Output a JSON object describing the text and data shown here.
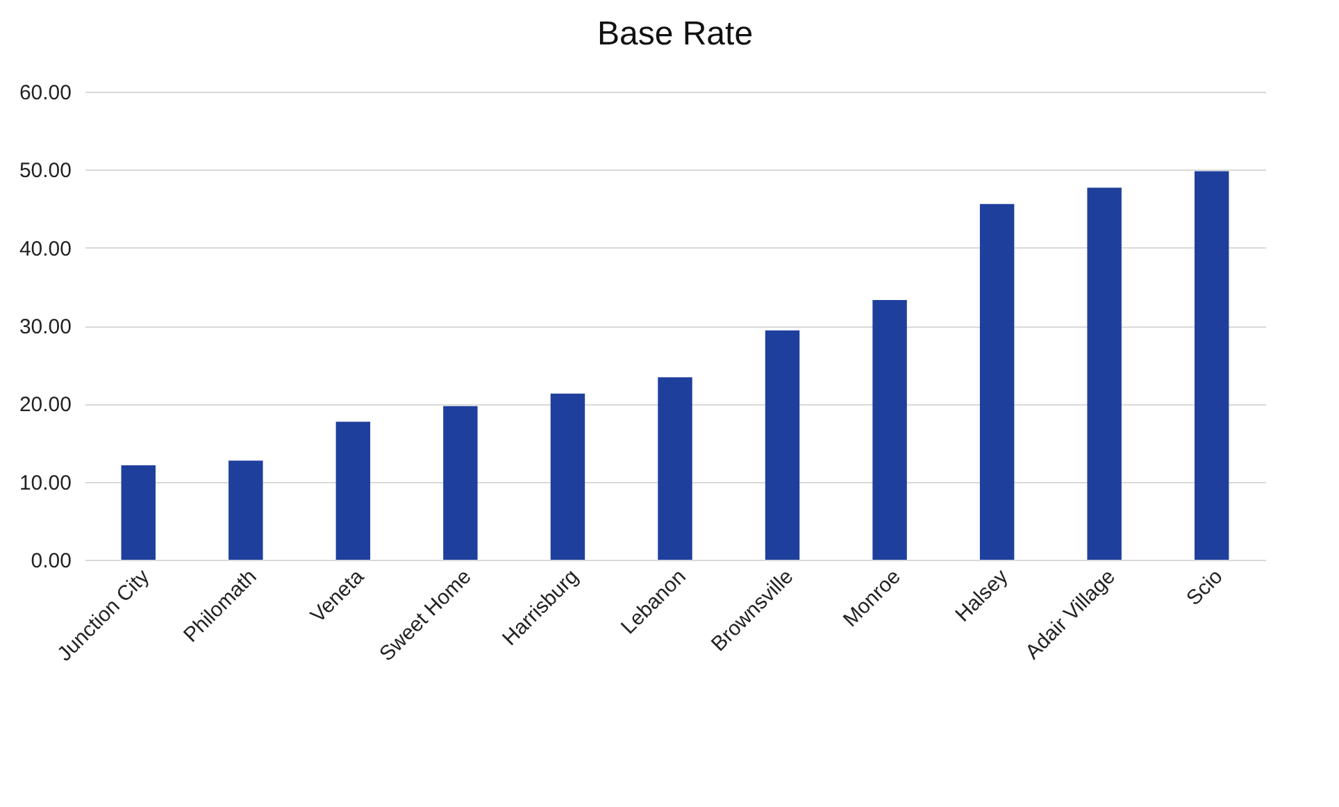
{
  "chart_data": {
    "type": "bar",
    "title": "Base Rate",
    "categories": [
      "Junction City",
      "Philomath",
      "Veneta",
      "Sweet Home",
      "Harrisburg",
      "Lebanon",
      "Brownsville",
      "Monroe",
      "Halsey",
      "Adair Village",
      "Scio"
    ],
    "values": [
      12.1,
      12.7,
      17.7,
      19.7,
      21.3,
      23.4,
      29.4,
      33.3,
      45.6,
      47.7,
      49.8
    ],
    "color": "#1f3f9c",
    "ylim": [
      0,
      60
    ],
    "yticks": [
      {
        "value": 0,
        "label": "0.00"
      },
      {
        "value": 10,
        "label": "10.00"
      },
      {
        "value": 20,
        "label": "20.00"
      },
      {
        "value": 30,
        "label": "30.00"
      },
      {
        "value": 40,
        "label": "40.00"
      },
      {
        "value": 50,
        "label": "50.00"
      },
      {
        "value": 60,
        "label": "60.00"
      }
    ],
    "grid": "y"
  }
}
